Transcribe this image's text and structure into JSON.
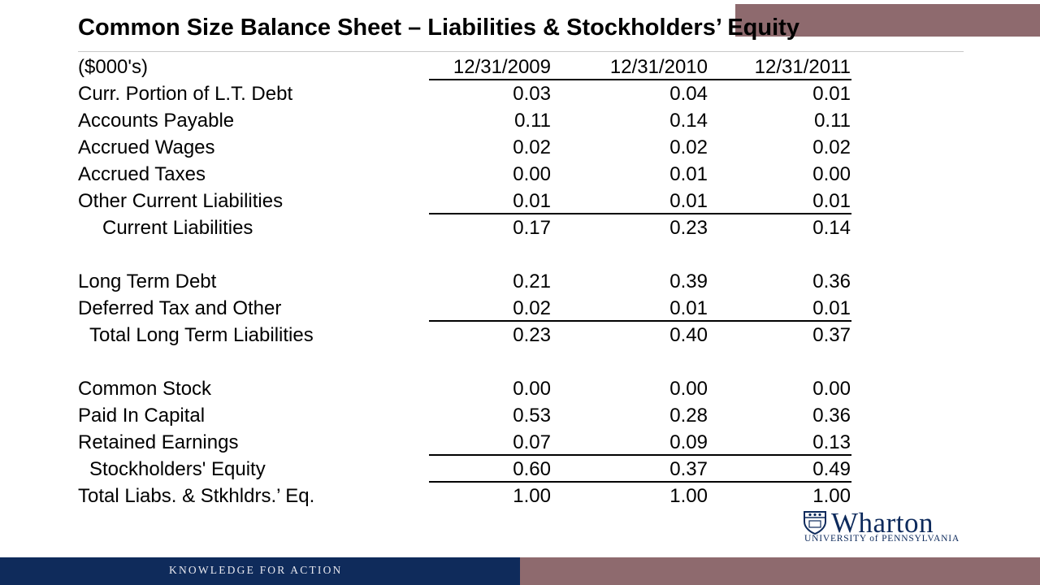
{
  "title": "Common Size Balance Sheet – Liabilities & Stockholders’ Equity",
  "header": {
    "units": "($000's)",
    "periods": [
      "12/31/2009",
      "12/31/2010",
      "12/31/2011"
    ]
  },
  "rows": [
    {
      "label": "Curr. Portion of   L.T. Debt",
      "values": [
        "0.03",
        "0.04",
        "0.01"
      ]
    },
    {
      "label": "Accounts Payable",
      "values": [
        "0.11",
        "0.14",
        "0.11"
      ]
    },
    {
      "label": "Accrued Wages",
      "values": [
        "0.02",
        "0.02",
        "0.02"
      ]
    },
    {
      "label": "Accrued Taxes",
      "values": [
        "0.00",
        "0.01",
        "0.00"
      ]
    },
    {
      "label": "Other Current Liabilities",
      "values": [
        "0.01",
        "0.01",
        "0.01"
      ]
    },
    {
      "label": "Current Liabilities",
      "values": [
        "0.17",
        "0.23",
        "0.14"
      ]
    },
    {
      "label": "Long Term Debt",
      "values": [
        "0.21",
        "0.39",
        "0.36"
      ]
    },
    {
      "label": "Deferred Tax and Other",
      "values": [
        "0.02",
        "0.01",
        "0.01"
      ]
    },
    {
      "label": "Total Long Term Liabilities",
      "values": [
        "0.23",
        "0.40",
        "0.37"
      ]
    },
    {
      "label": "Common Stock",
      "values": [
        "0.00",
        "0.00",
        "0.00"
      ]
    },
    {
      "label": "Paid In Capital",
      "values": [
        "0.53",
        "0.28",
        "0.36"
      ]
    },
    {
      "label": "Retained Earnings",
      "values": [
        "0.07",
        "0.09",
        "0.13"
      ]
    },
    {
      "label": "Stockholders' Equity",
      "values": [
        "0.60",
        "0.37",
        "0.49"
      ]
    },
    {
      "label": "Total Liabs. & Stkhldrs.’ Eq.",
      "values": [
        "1.00",
        "1.00",
        "1.00"
      ]
    }
  ],
  "logo": {
    "word": "Wharton",
    "sub": "UNIVERSITY of PENNSYLVANIA"
  },
  "footer": {
    "tagline": "KNOWLEDGE FOR ACTION"
  },
  "colors": {
    "navy": "#0f2b5b",
    "mauve": "#8e6a6e"
  }
}
